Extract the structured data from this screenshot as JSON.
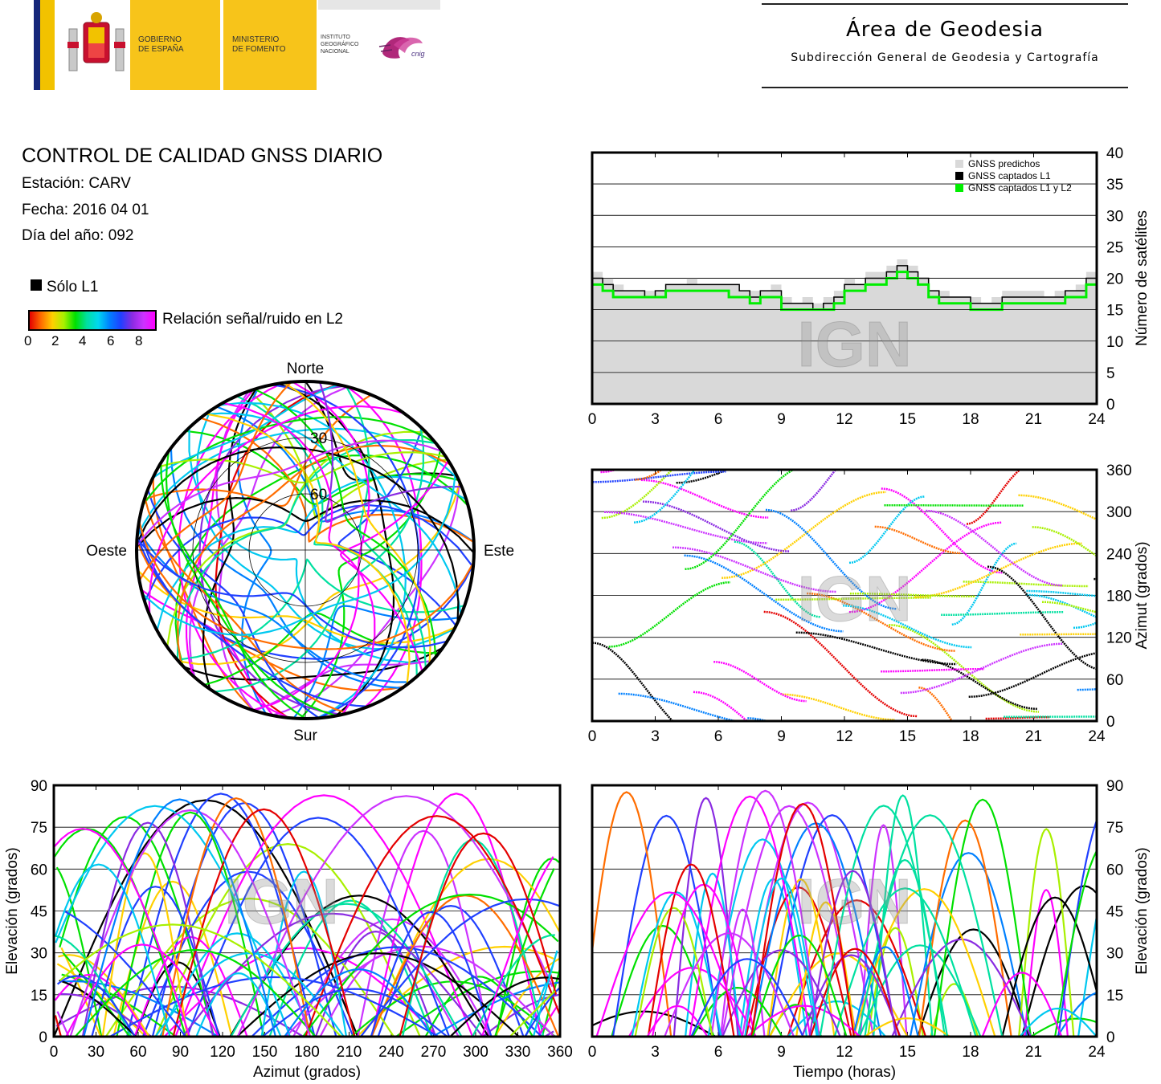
{
  "header": {
    "logo_gobierno_line1": "GOBIERNO",
    "logo_gobierno_line2": "DE ESPAÑA",
    "logo_ministerio_line1": "MINISTERIO",
    "logo_ministerio_line2": "DE FOMENTO",
    "logo_ign_line1": "INSTITUTO",
    "logo_ign_line2": "GEOGRÁFICO",
    "logo_ign_line3": "NACIONAL",
    "logo_cnig": "cnig",
    "area_title": "Área de Geodesia",
    "area_subtitle": "Subdirección General de Geodesia y Cartografía"
  },
  "info": {
    "title": "CONTROL DE CALIDAD GNSS DIARIO",
    "station": "Estación: CARV",
    "date": "Fecha: 2016 04 01",
    "doy": "Día del año: 092"
  },
  "legend": {
    "l1_only": "Sólo L1",
    "snr_label": "Relación señal/ruido en L2",
    "snr_ticks": [
      "0",
      "2",
      "4",
      "6",
      "8"
    ],
    "watermark": "IGN",
    "colors": {
      "l1_only": "#000000",
      "predicted": "#d9d9d9",
      "captured_l1": "#000000",
      "captured_l1l2": "#00ee00"
    }
  },
  "chart_data": [
    {
      "id": "satellite-count",
      "type": "line",
      "x_ticks": [
        "0",
        "3",
        "6",
        "9",
        "12",
        "15",
        "18",
        "21",
        "24"
      ],
      "y_ticks": [
        "0",
        "5",
        "10",
        "15",
        "20",
        "25",
        "30",
        "35",
        "40"
      ],
      "xlim": [
        0,
        24
      ],
      "ylim": [
        0,
        40
      ],
      "ylabel": "Número de satélites",
      "legend_position": "top-right",
      "legend": [
        "GNSS predichos",
        "GNSS captados L1",
        "GNSS captados L1 y L2"
      ],
      "grid": true,
      "x": [
        0,
        0.5,
        1,
        1.5,
        2,
        2.5,
        3,
        3.5,
        4,
        4.5,
        5,
        5.5,
        6,
        6.5,
        7,
        7.5,
        8,
        8.5,
        9,
        9.5,
        10,
        10.5,
        11,
        11.5,
        12,
        12.5,
        13,
        13.5,
        14,
        14.5,
        15,
        15.5,
        16,
        16.5,
        17,
        17.5,
        18,
        18.5,
        19,
        19.5,
        20,
        20.5,
        21,
        21.5,
        22,
        22.5,
        23,
        23.5,
        24
      ],
      "series": [
        {
          "name": "GNSS predichos",
          "values": [
            21,
            20,
            19,
            18,
            18,
            18,
            18,
            19,
            19,
            20,
            19,
            19,
            19,
            19,
            18,
            18,
            18,
            19,
            17,
            16,
            17,
            16,
            17,
            18,
            20,
            19,
            21,
            21,
            22,
            23,
            22,
            20,
            18,
            18,
            17,
            17,
            17,
            16,
            17,
            18,
            18,
            18,
            18,
            17,
            18,
            18,
            19,
            21,
            21
          ]
        },
        {
          "name": "GNSS captados L1",
          "values": [
            20,
            19,
            18,
            18,
            18,
            17,
            18,
            19,
            19,
            19,
            19,
            19,
            19,
            19,
            18,
            17,
            18,
            18,
            16,
            16,
            16,
            15,
            16,
            17,
            19,
            19,
            20,
            20,
            21,
            22,
            21,
            20,
            18,
            17,
            17,
            17,
            16,
            16,
            16,
            17,
            17,
            17,
            17,
            17,
            17,
            18,
            18,
            20,
            20
          ]
        },
        {
          "name": "GNSS captados L1 y L2",
          "values": [
            19,
            18,
            17,
            17,
            17,
            17,
            17,
            18,
            18,
            18,
            18,
            18,
            18,
            17,
            17,
            16,
            17,
            17,
            15,
            15,
            15,
            15,
            15,
            16,
            18,
            18,
            19,
            19,
            20,
            21,
            20,
            19,
            17,
            16,
            16,
            16,
            15,
            15,
            15,
            16,
            16,
            16,
            16,
            16,
            16,
            17,
            17,
            19,
            20
          ]
        }
      ]
    },
    {
      "id": "azimuth-time",
      "type": "scatter",
      "x_ticks": [
        "0",
        "3",
        "6",
        "9",
        "12",
        "15",
        "18",
        "21",
        "24"
      ],
      "y_ticks": [
        "0",
        "60",
        "120",
        "180",
        "240",
        "300",
        "360"
      ],
      "xlim": [
        0,
        24
      ],
      "ylim": [
        0,
        360
      ],
      "ylabel": "Azimut (grados)",
      "grid": true,
      "note": "satellite azimuth tracks colored by L2 SNR"
    },
    {
      "id": "skyplot",
      "type": "scatter",
      "labels": {
        "north": "Norte",
        "south": "Sur",
        "west": "Oeste",
        "east": "Este",
        "ring30": "30",
        "ring60": "60"
      }
    },
    {
      "id": "elevation-azimuth",
      "type": "scatter",
      "x_ticks": [
        "0",
        "30",
        "60",
        "90",
        "120",
        "150",
        "180",
        "210",
        "240",
        "270",
        "300",
        "330",
        "360"
      ],
      "y_ticks": [
        "0",
        "15",
        "30",
        "45",
        "60",
        "75",
        "90"
      ],
      "xlim": [
        0,
        360
      ],
      "ylim": [
        0,
        90
      ],
      "xlabel": "Azimut (grados)",
      "ylabel": "Elevación (grados)",
      "grid": true
    },
    {
      "id": "elevation-time",
      "type": "scatter",
      "x_ticks": [
        "0",
        "3",
        "6",
        "9",
        "12",
        "15",
        "18",
        "21",
        "24"
      ],
      "y_ticks": [
        "0",
        "15",
        "30",
        "45",
        "60",
        "75",
        "90"
      ],
      "xlim": [
        0,
        24
      ],
      "ylim": [
        0,
        90
      ],
      "xlabel": "Tiempo (horas)",
      "ylabel": "Elevación (grados)",
      "grid": true
    }
  ]
}
